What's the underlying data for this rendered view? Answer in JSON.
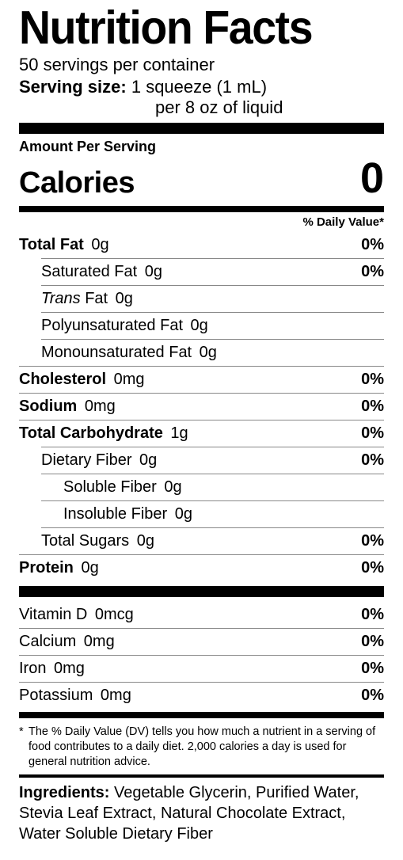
{
  "background_color": "#ffffff",
  "text_color": "#000000",
  "rule_color": "#888888",
  "title": "Nutrition Facts",
  "servings_per_container": "50 servings per container",
  "serving_size_label": "Serving size:",
  "serving_size_line1": "1 squeeze (1 mL)",
  "serving_size_line2": "per 8 oz of liquid",
  "amount_per_serving": "Amount Per Serving",
  "calories_label": "Calories",
  "calories_value": "0",
  "dv_header": "% Daily Value*",
  "nutrients_main": [
    {
      "name": "Total Fat",
      "amt": "0g",
      "dv": "0%",
      "bold": true,
      "indent": 0
    },
    {
      "name": "Saturated Fat",
      "amt": "0g",
      "dv": "0%",
      "bold": false,
      "indent": 1
    },
    {
      "name_pre": "Trans",
      "name_post": " Fat",
      "amt": "0g",
      "dv": "",
      "bold": false,
      "indent": 1,
      "italic_pre": true
    },
    {
      "name": "Polyunsaturated Fat",
      "amt": "0g",
      "dv": "",
      "bold": false,
      "indent": 1
    },
    {
      "name": "Monounsaturated Fat",
      "amt": "0g",
      "dv": "",
      "bold": false,
      "indent": 1
    },
    {
      "name": "Cholesterol",
      "amt": "0mg",
      "dv": "0%",
      "bold": true,
      "indent": 0
    },
    {
      "name": "Sodium",
      "amt": "0mg",
      "dv": "0%",
      "bold": true,
      "indent": 0
    },
    {
      "name": "Total Carbohydrate",
      "amt": "1g",
      "dv": "0%",
      "bold": true,
      "indent": 0
    },
    {
      "name": "Dietary Fiber",
      "amt": "0g",
      "dv": "0%",
      "bold": false,
      "indent": 1
    },
    {
      "name": "Soluble Fiber",
      "amt": "0g",
      "dv": "",
      "bold": false,
      "indent": 2
    },
    {
      "name": "Insoluble Fiber ",
      "amt": "0g",
      "dv": "",
      "bold": false,
      "indent": 2
    },
    {
      "name": "Total Sugars",
      "amt": "0g",
      "dv": "0%",
      "bold": false,
      "indent": 1
    },
    {
      "name": "Protein",
      "amt": "0g",
      "dv": "0%",
      "bold": true,
      "indent": 0
    }
  ],
  "nutrients_vitamins": [
    {
      "name": "Vitamin D",
      "amt": "0mcg",
      "dv": "0%"
    },
    {
      "name": "Calcium",
      "amt": "0mg",
      "dv": "0%"
    },
    {
      "name": "Iron",
      "amt": "0mg",
      "dv": "0%"
    },
    {
      "name": "Potassium",
      "amt": "0mg",
      "dv": "0%"
    }
  ],
  "footnote_star": "*",
  "footnote": "The % Daily Value (DV) tells you how much a nutrient in a serving of food contributes to a daily diet. 2,000 calories a day is used for general nutrition advice.",
  "ingredients_label": "Ingredients:",
  "ingredients": "Vegetable Glycerin, Purified Water, Stevia Leaf Extract, Natural Chocolate Extract, Water Soluble Dietary Fiber"
}
